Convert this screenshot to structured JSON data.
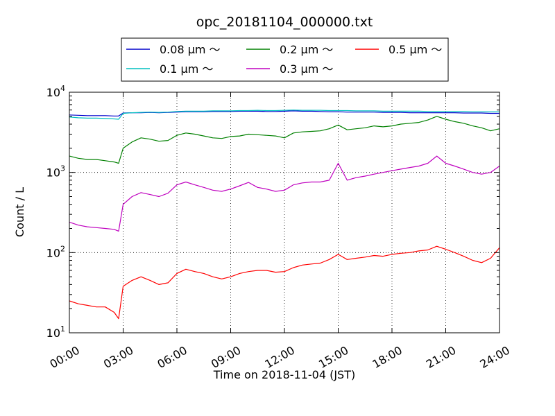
{
  "chart_data": {
    "type": "line",
    "title": "opc_20181104_000000.txt",
    "xlabel": "Time on 2018-11-04 (JST)",
    "ylabel": "Count / L",
    "y_scale": "log",
    "ylim": [
      10,
      10000
    ],
    "xlim": [
      "00:00",
      "24:00"
    ],
    "grid": true,
    "legend_position": "top-center",
    "x_ticks": [
      "00:00",
      "03:00",
      "06:00",
      "09:00",
      "12:00",
      "15:00",
      "18:00",
      "21:00",
      "24:00"
    ],
    "y_ticks": [
      {
        "base": "10",
        "exp": "1"
      },
      {
        "base": "10",
        "exp": "2"
      },
      {
        "base": "10",
        "exp": "3"
      },
      {
        "base": "10",
        "exp": "4"
      }
    ],
    "x": [
      "00:00",
      "00:30",
      "01:00",
      "01:30",
      "02:00",
      "02:30",
      "02:45",
      "03:00",
      "03:30",
      "04:00",
      "04:30",
      "05:00",
      "05:30",
      "06:00",
      "06:30",
      "07:00",
      "07:30",
      "08:00",
      "08:30",
      "09:00",
      "09:30",
      "10:00",
      "10:30",
      "11:00",
      "11:30",
      "12:00",
      "12:30",
      "13:00",
      "13:30",
      "14:00",
      "14:30",
      "15:00",
      "15:30",
      "16:00",
      "16:30",
      "17:00",
      "17:30",
      "18:00",
      "18:30",
      "19:00",
      "19:30",
      "20:00",
      "20:30",
      "21:00",
      "21:30",
      "22:00",
      "22:30",
      "23:00",
      "23:30",
      "24:00"
    ],
    "series": [
      {
        "name": "0.08 μm ～",
        "color": "#0000cc",
        "values": [
          5200,
          5150,
          5100,
          5100,
          5100,
          5050,
          5050,
          5500,
          5550,
          5550,
          5600,
          5550,
          5600,
          5650,
          5700,
          5700,
          5700,
          5750,
          5750,
          5750,
          5800,
          5800,
          5800,
          5750,
          5750,
          5800,
          5850,
          5800,
          5800,
          5750,
          5700,
          5700,
          5650,
          5650,
          5650,
          5650,
          5600,
          5600,
          5600,
          5550,
          5550,
          5550,
          5550,
          5550,
          5550,
          5500,
          5500,
          5500,
          5450,
          5450
        ]
      },
      {
        "name": "0.1 μm ～",
        "color": "#00bfbf",
        "values": [
          4900,
          4800,
          4750,
          4750,
          4700,
          4650,
          4600,
          5450,
          5550,
          5600,
          5650,
          5600,
          5650,
          5750,
          5800,
          5800,
          5800,
          5850,
          5850,
          5850,
          5900,
          5900,
          5950,
          5900,
          5900,
          5950,
          6000,
          5950,
          5950,
          5950,
          5900,
          5900,
          5900,
          5850,
          5850,
          5850,
          5800,
          5800,
          5800,
          5800,
          5800,
          5750,
          5750,
          5750,
          5750,
          5750,
          5700,
          5700,
          5700,
          5700
        ]
      },
      {
        "name": "0.2 μm ～",
        "color": "#008000",
        "values": [
          1600,
          1500,
          1450,
          1450,
          1400,
          1350,
          1300,
          2000,
          2400,
          2700,
          2600,
          2450,
          2500,
          2900,
          3100,
          3000,
          2850,
          2700,
          2650,
          2800,
          2850,
          3000,
          2950,
          2900,
          2850,
          2700,
          3100,
          3200,
          3250,
          3300,
          3500,
          3900,
          3400,
          3500,
          3600,
          3800,
          3700,
          3800,
          4000,
          4100,
          4200,
          4500,
          5000,
          4600,
          4300,
          4100,
          3800,
          3600,
          3300,
          3500
        ]
      },
      {
        "name": "0.3 μm ～",
        "color": "#bf00bf",
        "values": [
          240,
          220,
          210,
          205,
          200,
          195,
          185,
          400,
          500,
          560,
          530,
          500,
          550,
          700,
          760,
          700,
          650,
          600,
          580,
          620,
          680,
          750,
          650,
          620,
          580,
          600,
          700,
          740,
          760,
          760,
          800,
          1300,
          800,
          860,
          900,
          950,
          1000,
          1050,
          1100,
          1150,
          1200,
          1300,
          1600,
          1300,
          1200,
          1100,
          1000,
          950,
          1000,
          1200
        ]
      },
      {
        "name": "0.5 μm ～",
        "color": "#ff0000",
        "values": [
          25,
          23,
          22,
          21,
          21,
          18,
          15,
          38,
          45,
          50,
          45,
          40,
          42,
          55,
          62,
          58,
          55,
          50,
          47,
          50,
          55,
          58,
          60,
          60,
          57,
          58,
          65,
          70,
          72,
          74,
          82,
          95,
          82,
          85,
          88,
          92,
          90,
          95,
          98,
          100,
          105,
          108,
          120,
          110,
          100,
          90,
          80,
          75,
          85,
          115
        ]
      }
    ]
  }
}
